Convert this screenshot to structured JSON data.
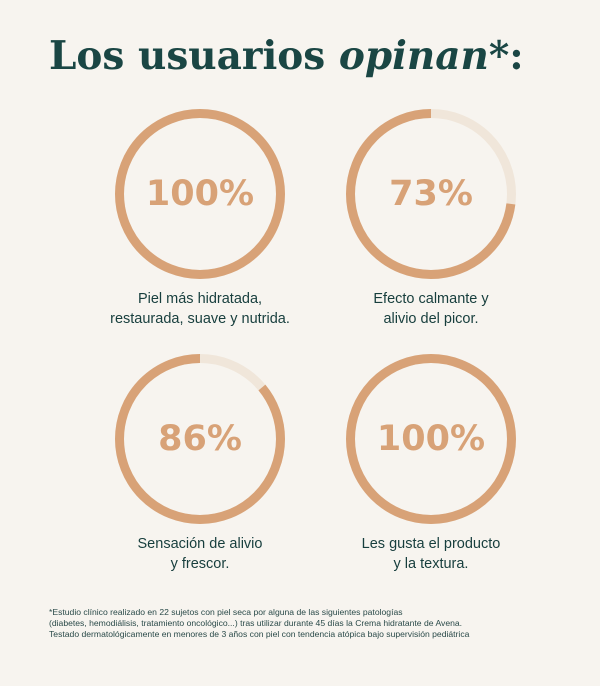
{
  "header": {
    "title_main": "Los usuarios ",
    "title_accent": "opinan",
    "title_suffix": "*:"
  },
  "colors": {
    "background": "#f7f4ef",
    "title": "#1a4644",
    "ring_fill": "#d8a277",
    "ring_track": "#f0e6da",
    "text": "#173e3d"
  },
  "stats": [
    {
      "percent": 100,
      "label": "100%",
      "caption": "Piel más hidratada,\nrestaurada, suave y nutrida."
    },
    {
      "percent": 73,
      "label": "73%",
      "caption": "Efecto calmante y\nalivio del picor."
    },
    {
      "percent": 86,
      "label": "86%",
      "caption": "Sensación de alivio\ny frescor."
    },
    {
      "percent": 100,
      "label": "100%",
      "caption": "Les gusta el producto\ny la textura."
    }
  ],
  "footnote": {
    "line1": "*Estudio clínico realizado en 22 sujetos con piel seca por alguna de las siguientes patologías",
    "line2": "(diabetes, hemodiálisis, tratamiento oncológico...) tras utilizar durante 45 días la Crema hidratante de Avena.",
    "line3": "Testado dermatológicamente en menores de 3 años con piel con tendencia atópica bajo supervisión pediátrica"
  }
}
